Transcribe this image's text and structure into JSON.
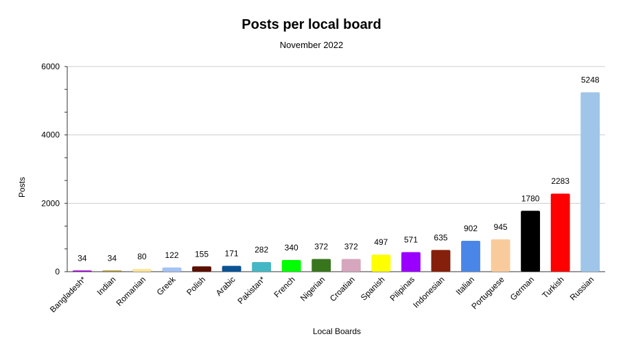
{
  "chart_data": {
    "type": "bar",
    "title": "Posts per local board",
    "subtitle": "November 2022",
    "xlabel": "Local Boards",
    "ylabel": "Posts",
    "ylim": [
      0,
      6000
    ],
    "yticks": [
      0,
      2000,
      4000,
      6000
    ],
    "grid": true,
    "legend": "none",
    "categories": [
      "Bangladesh*",
      "Indian",
      "Romanian",
      "Greek",
      "Polish",
      "Arabic",
      "Pakistan*",
      "French",
      "Nigerian",
      "Croatian",
      "Spanish",
      "Pilipinas",
      "Indonesian",
      "Italian",
      "Portuguese",
      "German",
      "Turkish",
      "Russian"
    ],
    "values": [
      34,
      34,
      80,
      122,
      155,
      171,
      282,
      340,
      372,
      372,
      497,
      571,
      635,
      902,
      945,
      1780,
      2283,
      5248
    ],
    "colors": [
      "#9900cc",
      "#a58a2c",
      "#ffe599",
      "#a4c2f4",
      "#5b0f00",
      "#0b5394",
      "#45b7c4",
      "#00ff00",
      "#38761d",
      "#d5a6bd",
      "#ffff00",
      "#9900ff",
      "#85200c",
      "#4a86e8",
      "#f9cb9c",
      "#000000",
      "#ff0000",
      "#9fc5e8"
    ]
  }
}
